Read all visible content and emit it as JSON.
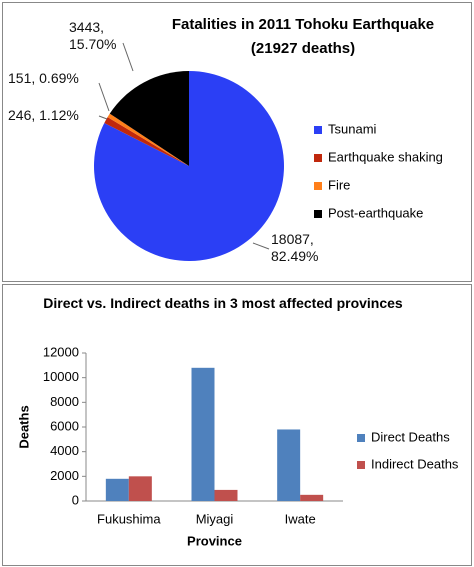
{
  "chart_data": [
    {
      "type": "pie",
      "title": "Fatalities in 2011 Tohoku Earthquake",
      "subtitle": "(21927 deaths)",
      "categories": [
        "Tsunami",
        "Earthquake shaking",
        "Fire",
        "Post-earthquake"
      ],
      "values": [
        18087,
        246,
        151,
        3443
      ],
      "value_labels": [
        "18087, 82.49%",
        "246, 1.12%",
        "151, 0.69%",
        "3443, 15.70%"
      ],
      "colors": [
        "#2b3ff5",
        "#c0280c",
        "#ff7f1a",
        "#000000"
      ]
    },
    {
      "type": "bar",
      "title": "Direct vs. Indirect deaths in 3 most affected provinces",
      "x_label": "Province",
      "y_label": "Deaths",
      "categories": [
        "Fukushima",
        "Miyagi",
        "Iwate"
      ],
      "series": [
        {
          "name": "Direct Deaths",
          "color": "#4f81bd",
          "values": [
            1800,
            10800,
            5800
          ]
        },
        {
          "name": "Indirect Deaths",
          "color": "#c0504d",
          "values": [
            2000,
            900,
            500
          ]
        }
      ],
      "ylim": [
        0,
        12000
      ],
      "yticks": [
        0,
        2000,
        4000,
        6000,
        8000,
        10000,
        12000
      ],
      "grid": false
    }
  ]
}
